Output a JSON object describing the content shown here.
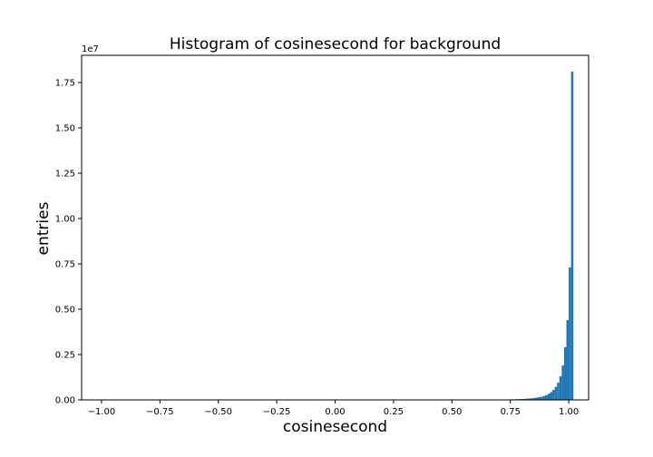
{
  "chart_data": {
    "type": "bar",
    "title": "Histogram of cosinesecond for background",
    "xlabel": "cosinesecond",
    "ylabel": "entries",
    "y_offset_text": "1e7",
    "xlim": [
      -1.085,
      1.085
    ],
    "ylim": [
      0,
      1.9
    ],
    "bar_color": "#1f77b4",
    "grid": false,
    "x_ticks": [
      {
        "value": -1.0,
        "label": "−1.00"
      },
      {
        "value": -0.75,
        "label": "−0.75"
      },
      {
        "value": -0.5,
        "label": "−0.50"
      },
      {
        "value": -0.25,
        "label": "−0.25"
      },
      {
        "value": 0.0,
        "label": "0.00"
      },
      {
        "value": 0.25,
        "label": "0.25"
      },
      {
        "value": 0.5,
        "label": "0.50"
      },
      {
        "value": 0.75,
        "label": "0.75"
      },
      {
        "value": 1.0,
        "label": "1.00"
      }
    ],
    "y_ticks": [
      {
        "value": 0.0,
        "label": "0.00"
      },
      {
        "value": 0.25,
        "label": "0.25"
      },
      {
        "value": 0.5,
        "label": "0.50"
      },
      {
        "value": 0.75,
        "label": "0.75"
      },
      {
        "value": 1.0,
        "label": "1.00"
      },
      {
        "value": 1.25,
        "label": "1.25"
      },
      {
        "value": 1.5,
        "label": "1.50"
      },
      {
        "value": 1.75,
        "label": "1.75"
      }
    ],
    "bins": [
      {
        "x0": 0.75,
        "x1": 0.76,
        "value": 0.003
      },
      {
        "x0": 0.76,
        "x1": 0.77,
        "value": 0.003
      },
      {
        "x0": 0.77,
        "x1": 0.78,
        "value": 0.004
      },
      {
        "x0": 0.78,
        "x1": 0.79,
        "value": 0.004
      },
      {
        "x0": 0.79,
        "x1": 0.8,
        "value": 0.005
      },
      {
        "x0": 0.8,
        "x1": 0.81,
        "value": 0.005
      },
      {
        "x0": 0.81,
        "x1": 0.82,
        "value": 0.006
      },
      {
        "x0": 0.82,
        "x1": 0.83,
        "value": 0.007
      },
      {
        "x0": 0.83,
        "x1": 0.84,
        "value": 0.008
      },
      {
        "x0": 0.84,
        "x1": 0.85,
        "value": 0.009
      },
      {
        "x0": 0.85,
        "x1": 0.86,
        "value": 0.011
      },
      {
        "x0": 0.86,
        "x1": 0.87,
        "value": 0.013
      },
      {
        "x0": 0.87,
        "x1": 0.88,
        "value": 0.015
      },
      {
        "x0": 0.88,
        "x1": 0.89,
        "value": 0.018
      },
      {
        "x0": 0.89,
        "x1": 0.9,
        "value": 0.022
      },
      {
        "x0": 0.9,
        "x1": 0.91,
        "value": 0.027
      },
      {
        "x0": 0.91,
        "x1": 0.92,
        "value": 0.034
      },
      {
        "x0": 0.92,
        "x1": 0.93,
        "value": 0.043
      },
      {
        "x0": 0.93,
        "x1": 0.94,
        "value": 0.055
      },
      {
        "x0": 0.94,
        "x1": 0.95,
        "value": 0.072
      },
      {
        "x0": 0.95,
        "x1": 0.96,
        "value": 0.095
      },
      {
        "x0": 0.96,
        "x1": 0.97,
        "value": 0.13
      },
      {
        "x0": 0.97,
        "x1": 0.98,
        "value": 0.19
      },
      {
        "x0": 0.98,
        "x1": 0.99,
        "value": 0.29
      },
      {
        "x0": 0.99,
        "x1": 1.0,
        "value": 0.44
      },
      {
        "x0": 1.0,
        "x1": 1.01,
        "value": 0.73
      },
      {
        "x0": 1.01,
        "x1": 1.02,
        "value": 1.81
      }
    ]
  }
}
